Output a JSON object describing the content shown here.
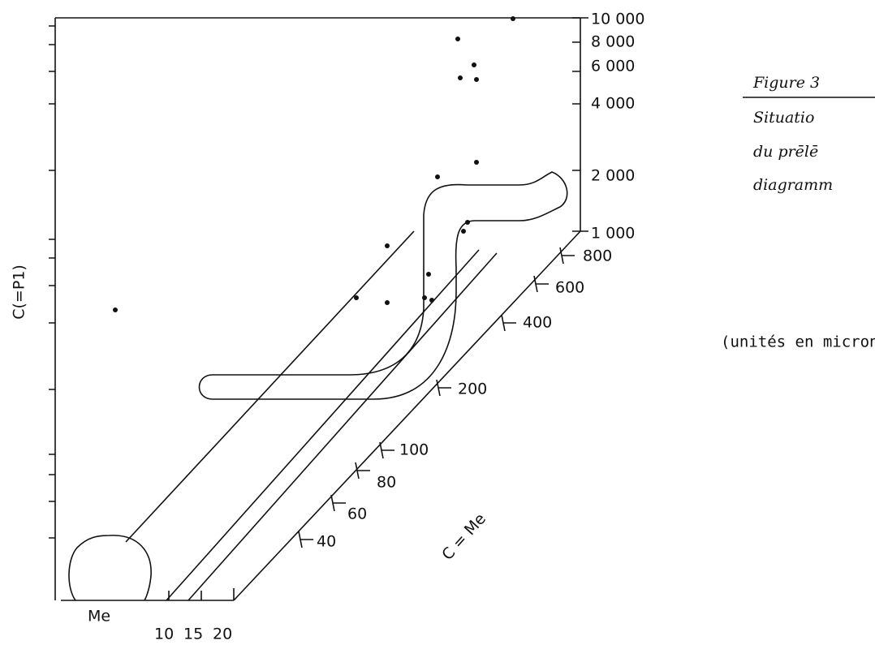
{
  "figure": {
    "right_axis_labels": [
      "10 000",
      "8 000",
      "6 000",
      "4 000",
      "2 000",
      "1 000"
    ],
    "diagonal_axis_labels": [
      "800",
      "600",
      "400",
      "200",
      "100",
      "80",
      "60",
      "40"
    ],
    "bottom_axis_labels": [
      "Me",
      "10",
      "15",
      "20"
    ],
    "vertical_axis_title": "C(=P1)",
    "diagonal_axis_title": "C = Me",
    "caption": {
      "title": "Figure 3",
      "lines": [
        "Situatio",
        "du prēlē",
        "diagramm"
      ]
    },
    "note": "(unités en microns)"
  }
}
